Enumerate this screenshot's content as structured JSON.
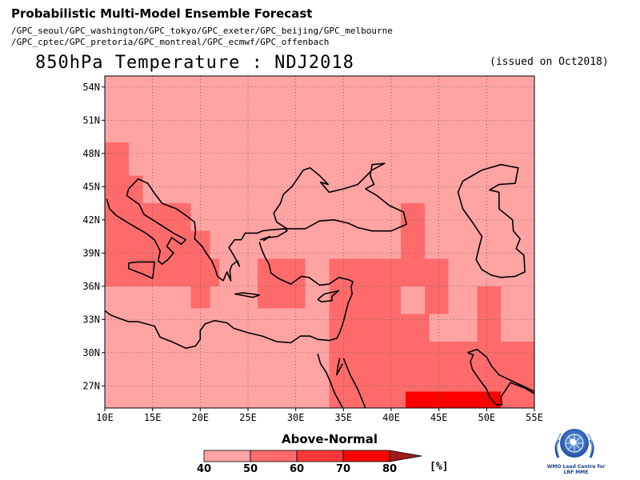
{
  "header": {
    "title": "Probabilistic Multi-Model Ensemble Forecast",
    "gpc_line_1": "/GPC_seoul/GPC_washington/GPC_tokyo/GPC_exeter/GPC_beijing/GPC_melbourne",
    "gpc_line_2": "/GPC_cptec/GPC_pretoria/GPC_montreal/GPC_ecmwf/GPC_offenbach"
  },
  "map": {
    "title": "850hPa Temperature : NDJ2018",
    "issued": "(issued on Oct2018)",
    "lon_range": [
      10,
      55
    ],
    "lat_range": [
      25,
      55
    ],
    "lon_ticks": [
      "10E",
      "15E",
      "20E",
      "25E",
      "30E",
      "35E",
      "40E",
      "45E",
      "50E",
      "55E"
    ],
    "lat_ticks": [
      "27N",
      "30N",
      "33N",
      "36N",
      "39N",
      "42N",
      "45N",
      "48N",
      "51N",
      "54N"
    ],
    "grid_resolution_deg": 2.5,
    "background_class": 0,
    "probability_cells": [
      {
        "lon": [
          10,
          12.5
        ],
        "lat": [
          36,
          49
        ],
        "class": 1
      },
      {
        "lon": [
          12.5,
          14
        ],
        "lat": [
          36,
          46
        ],
        "class": 1
      },
      {
        "lon": [
          14,
          19
        ],
        "lat": [
          36,
          43.5
        ],
        "class": 1
      },
      {
        "lon": [
          19,
          21
        ],
        "lat": [
          36,
          41
        ],
        "class": 1
      },
      {
        "lon": [
          19,
          21
        ],
        "lat": [
          34,
          36
        ],
        "class": 1
      },
      {
        "lon": [
          21,
          22
        ],
        "lat": [
          36,
          38.5
        ],
        "class": 1
      },
      {
        "lon": [
          26,
          31
        ],
        "lat": [
          34,
          38.5
        ],
        "class": 1
      },
      {
        "lon": [
          33.5,
          46
        ],
        "lat": [
          33.5,
          38.5
        ],
        "class": 1
      },
      {
        "lon": [
          41,
          43.5
        ],
        "lat": [
          38.5,
          43.5
        ],
        "class": 1
      },
      {
        "lon": [
          33.5,
          46
        ],
        "lat": [
          31,
          33.5
        ],
        "class": 1
      },
      {
        "lon": [
          33.5,
          55
        ],
        "lat": [
          25,
          31
        ],
        "class": 1
      },
      {
        "lon": [
          46,
          55
        ],
        "lat": [
          31,
          33.5
        ],
        "class": 1
      },
      {
        "lon": [
          49,
          51.5
        ],
        "lat": [
          33.5,
          36
        ],
        "class": 1
      },
      {
        "lon": [
          41.5,
          51.5
        ],
        "lat": [
          25,
          26.5
        ],
        "class": 3
      }
    ],
    "holes": [
      {
        "lon": [
          41,
          43.5
        ],
        "lat": [
          33.5,
          36
        ],
        "class": 0
      },
      {
        "lon": [
          44,
          49
        ],
        "lat": [
          31,
          33.5
        ],
        "class": 0
      },
      {
        "lon": [
          51.5,
          55
        ],
        "lat": [
          31,
          33.5
        ],
        "class": 0
      }
    ]
  },
  "legend": {
    "title": "Above-Normal",
    "unit": "[%]",
    "labels": [
      "40",
      "50",
      "60",
      "70",
      "80"
    ],
    "colors": [
      "#ffa3a3",
      "#ff6b6b",
      "#ff3838",
      "#ff0000",
      "#9e1a1a"
    ]
  },
  "logo": {
    "icon": "wmo-emblem-icon",
    "caption_1": "WMO Lead Centre for",
    "caption_2": "LRF MME"
  }
}
